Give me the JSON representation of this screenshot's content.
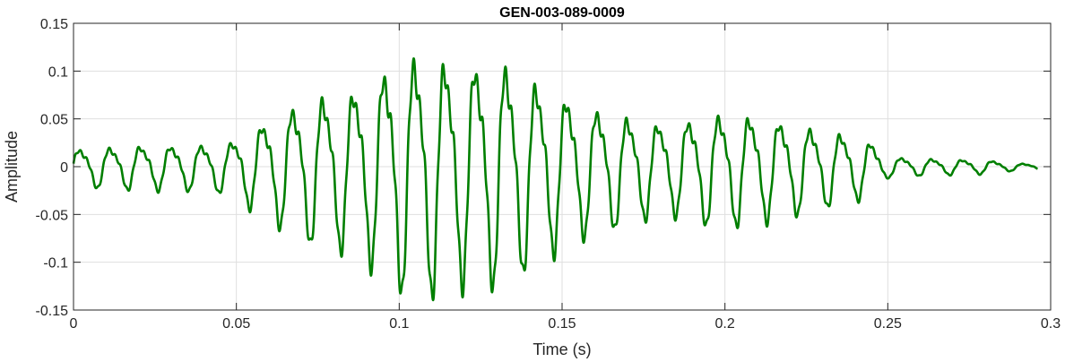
{
  "chart_data": {
    "type": "line",
    "title": "GEN-003-089-0009",
    "xlabel": "Time (s)",
    "ylabel": "Amplitude",
    "xlim": [
      0,
      0.3
    ],
    "ylim": [
      -0.15,
      0.15
    ],
    "x_ticks": [
      0,
      0.05,
      0.1,
      0.15,
      0.2,
      0.25,
      0.3
    ],
    "x_tick_labels": [
      "0",
      "0.05",
      "0.1",
      "0.15",
      "0.2",
      "0.25",
      "0.3"
    ],
    "y_ticks": [
      0.15,
      0.1,
      0.05,
      0,
      -0.05,
      -0.1,
      -0.15
    ],
    "y_tick_labels": [
      "0.15",
      "0.1",
      "0.05",
      "0",
      "-0.05",
      "-0.1",
      "-0.15"
    ],
    "grid": true,
    "line_color": "#007f00",
    "series": [
      {
        "x": [
          0,
          0.01,
          0.02,
          0.03,
          0.04,
          0.048,
          0.05,
          0.055,
          0.06,
          0.065,
          0.07,
          0.075,
          0.08,
          0.085,
          0.09,
          0.095,
          0.1,
          0.105,
          0.11,
          0.115,
          0.12,
          0.125,
          0.13,
          0.135,
          0.14,
          0.145,
          0.15,
          0.155,
          0.16,
          0.165,
          0.17,
          0.175,
          0.18,
          0.185,
          0.19,
          0.195,
          0.2,
          0.205,
          0.21,
          0.215,
          0.22,
          0.225,
          0.23,
          0.235,
          0.24,
          0.245,
          0.25,
          0.26,
          0.27,
          0.28,
          0.29,
          0.296
        ],
        "envelope": [
          0.022,
          0.024,
          0.026,
          0.026,
          0.027,
          0.03,
          0.035,
          0.048,
          0.058,
          0.07,
          0.08,
          0.088,
          0.09,
          0.095,
          0.105,
          0.12,
          0.138,
          0.138,
          0.142,
          0.132,
          0.13,
          0.13,
          0.132,
          0.126,
          0.11,
          0.1,
          0.09,
          0.08,
          0.072,
          0.07,
          0.062,
          0.058,
          0.054,
          0.054,
          0.06,
          0.065,
          0.065,
          0.065,
          0.062,
          0.058,
          0.055,
          0.05,
          0.045,
          0.042,
          0.038,
          0.03,
          0.012,
          0.01,
          0.009,
          0.008,
          0.004,
          0.003
        ]
      }
    ]
  }
}
